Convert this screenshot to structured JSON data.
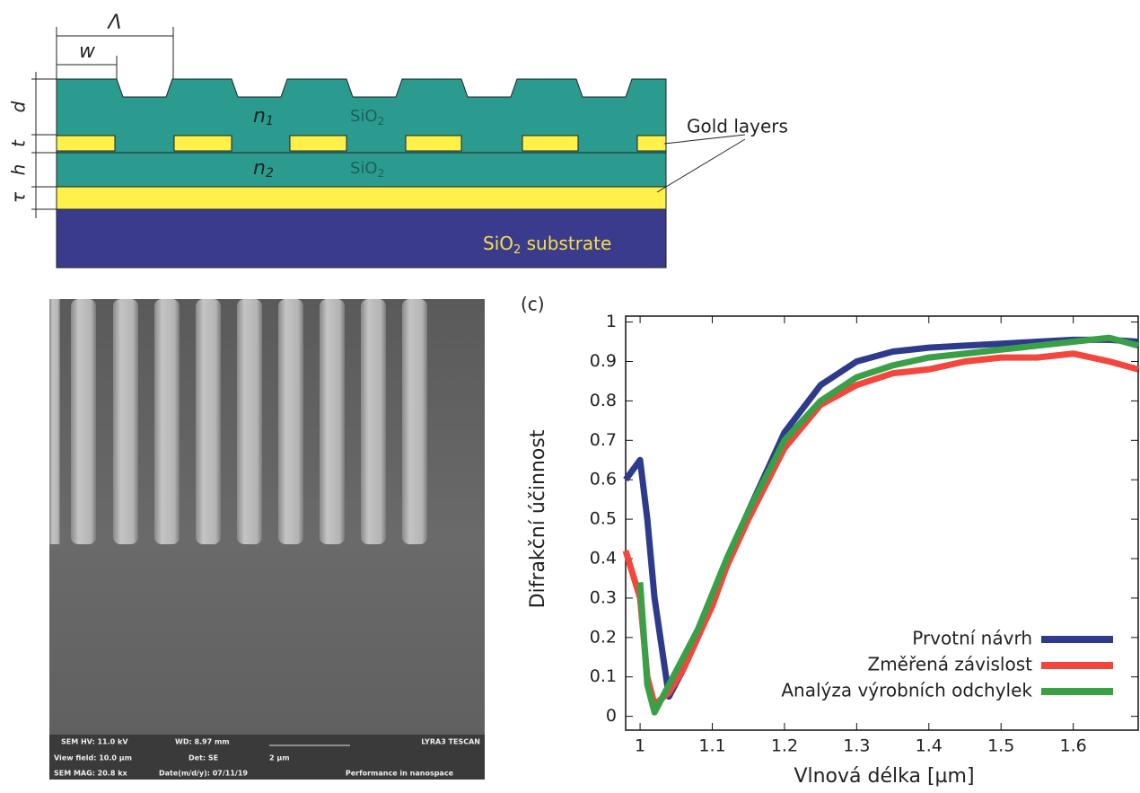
{
  "diagram": {
    "period": "Λ",
    "width": "w",
    "layers": [
      "d",
      "t",
      "h",
      "τ"
    ],
    "n1": {
      "symbol": "n",
      "index": "1"
    },
    "n2": {
      "symbol": "n",
      "index": "2"
    },
    "sio2_top": {
      "base": "SiO",
      "sub": "2"
    },
    "sio2_mid": {
      "base": "SiO",
      "sub": "2"
    },
    "gold_label": "Gold layers",
    "substrate": {
      "base": "SiO",
      "sub": "2",
      "rest": " substrate"
    }
  },
  "sem": {
    "rows": [
      [
        "SEM HV: 11.0 kV",
        "WD: 8.97 mm",
        "",
        "LYRA3 TESCAN"
      ],
      [
        "View field: 10.0 µm",
        "Det: SE",
        "2 µm",
        ""
      ],
      [
        "SEM MAG: 20.8 kx",
        "Date(m/d/y): 07/11/19",
        "",
        "Performance in nanospace"
      ]
    ]
  },
  "chart_data": {
    "type": "line",
    "panel": "(c)",
    "x_label": "Vlnová délka [µm]",
    "y_label": "Difrakční účinnost",
    "x": [
      0.98,
      1.0,
      1.01,
      1.02,
      1.04,
      1.06,
      1.08,
      1.1,
      1.12,
      1.15,
      1.2,
      1.25,
      1.3,
      1.35,
      1.4,
      1.45,
      1.5,
      1.55,
      1.6,
      1.65,
      1.69
    ],
    "series": [
      {
        "name": "Prvotní návrh",
        "color": "#2e3a8c",
        "values": [
          0.6,
          0.65,
          0.5,
          0.3,
          0.05,
          0.12,
          0.2,
          0.3,
          0.38,
          0.52,
          0.72,
          0.84,
          0.9,
          0.925,
          0.935,
          0.94,
          0.945,
          0.95,
          0.955,
          0.955,
          0.95
        ]
      },
      {
        "name": "Změřená závislost",
        "color": "#f4463c",
        "values": [
          0.42,
          0.3,
          0.1,
          0.03,
          0.06,
          0.12,
          0.2,
          0.28,
          0.38,
          0.5,
          0.68,
          0.79,
          0.84,
          0.87,
          0.88,
          0.9,
          0.91,
          0.91,
          0.92,
          0.9,
          0.88
        ]
      },
      {
        "name": "Analýza výrobních odchylek",
        "color": "#3aa047",
        "values": [
          null,
          0.34,
          0.08,
          0.01,
          0.08,
          0.15,
          0.22,
          0.31,
          0.4,
          0.52,
          0.7,
          0.8,
          0.86,
          0.89,
          0.91,
          0.92,
          0.93,
          0.94,
          0.95,
          0.96,
          0.94
        ]
      }
    ],
    "xlim": [
      0.98,
      1.69
    ],
    "ylim": [
      -0.035,
      1.015
    ],
    "xticks": [
      1,
      1.1,
      1.2,
      1.3,
      1.4,
      1.5,
      1.6
    ],
    "yticks": [
      0,
      0.1,
      0.2,
      0.3,
      0.4,
      0.5,
      0.6,
      0.7,
      0.8,
      0.9,
      1
    ],
    "legend": "lower right"
  }
}
